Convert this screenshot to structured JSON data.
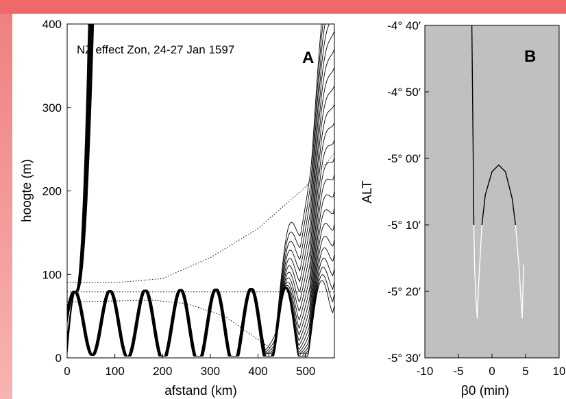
{
  "chart_data": [
    {
      "type": "line",
      "title": "NZ effect Zon, 24-27 Jan 1597",
      "panel_letter": "A",
      "xlabel": "afstand (km)",
      "ylabel": "hoogte (m)",
      "xlim": [
        0,
        560
      ],
      "ylim": [
        0,
        400
      ],
      "xticks": [
        "0",
        "100",
        "200",
        "300",
        "400",
        "500"
      ],
      "yticks": [
        "0",
        "100",
        "200",
        "300",
        "400"
      ],
      "grid": false,
      "ray_bundle": {
        "left_group_count": 12,
        "right_group_count": 22,
        "start_x": 0,
        "start_y_range": [
          5,
          25
        ],
        "peak_height": 80,
        "bounce_positions": [
          70,
          145,
          215,
          285,
          360,
          430
        ],
        "exit_height": 350
      },
      "dotted_reference_lines": [
        {
          "name": "",
          "x": [
            0,
            100,
            200,
            300,
            400,
            500,
            560
          ],
          "y": [
            90,
            90,
            95,
            120,
            155,
            205,
            245
          ]
        },
        {
          "name": "",
          "x": [
            0,
            560
          ],
          "y": [
            79,
            79
          ]
        },
        {
          "name": "",
          "x": [
            0,
            180,
            250,
            330,
            380,
            430
          ],
          "y": [
            67,
            69,
            65,
            50,
            30,
            10
          ]
        }
      ]
    },
    {
      "type": "line",
      "panel_letter": "B",
      "xlabel": "β0 (min)",
      "ylabel": "ALT",
      "xlim": [
        -10,
        10
      ],
      "xticks": [
        "-10",
        "-5",
        "0",
        "5",
        "10"
      ],
      "ylim_arcmin": [
        -330,
        -280
      ],
      "yticks": [
        "-4° 40′",
        "-4° 50′",
        "-5° 00′",
        "-5° 10′",
        "-5° 20′",
        "-5° 30′"
      ],
      "background": "#c0c0c0",
      "curves": [
        {
          "name": "",
          "color": "#000000",
          "x": [
            -3.0,
            -2.9,
            -2.8,
            -2.75,
            -2.7
          ],
          "y": [
            -280,
            -290,
            -300,
            -305,
            -310
          ]
        },
        {
          "name": "",
          "color": "#000000",
          "x": [
            -1.5,
            -1,
            0,
            1,
            2,
            3,
            3.5
          ],
          "y": [
            -310,
            -305.5,
            -302,
            -301,
            -302,
            -306,
            -310
          ]
        },
        {
          "name": "",
          "color": "#ffffff",
          "x": [
            -2.7,
            -2.6,
            -2.4,
            -2.2,
            -2.0,
            -1.5
          ],
          "y": [
            -310,
            -316,
            -321,
            -324,
            -319,
            -310
          ]
        },
        {
          "name": "",
          "color": "#ffffff",
          "x": [
            3.5,
            4.0,
            4.3,
            4.5,
            4.7
          ],
          "y": [
            -310,
            -316,
            -321,
            -324,
            -316
          ]
        }
      ]
    }
  ]
}
